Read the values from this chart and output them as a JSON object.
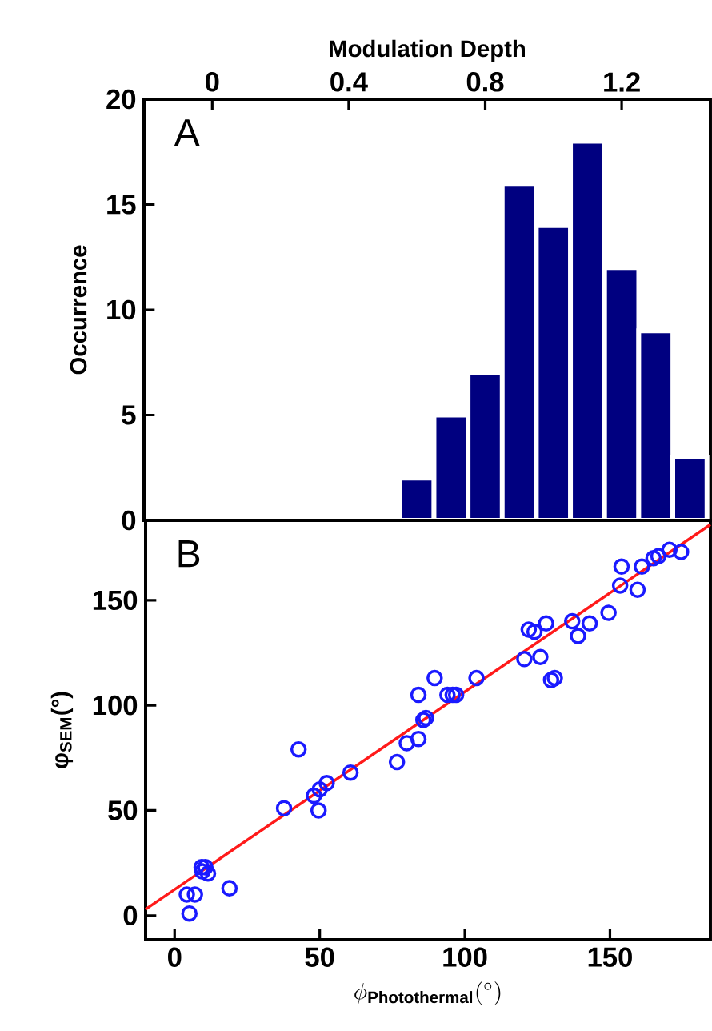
{
  "chart_data": [
    {
      "type": "histogram",
      "xlabel": "Modulation Depth",
      "ylabel": "Occurrence",
      "annotations": [
        "A"
      ],
      "bins": [
        0.55,
        0.65,
        0.75,
        0.85,
        0.95,
        1.05,
        1.15,
        1.25,
        1.35,
        1.45
      ],
      "values": [
        2,
        5,
        7,
        16,
        14,
        18,
        12,
        9,
        3
      ],
      "color": "#000080",
      "xlim": [
        -0.2,
        1.46
      ],
      "xticks": [
        0,
        0.4,
        0.8,
        1.2
      ],
      "ylim": [
        0,
        20
      ],
      "yticks": [
        0,
        5,
        10,
        15,
        20
      ]
    },
    {
      "type": "scatter",
      "xlabel": "\\phi_{\\mathbf{Photothermal}}(^{\\circ})",
      "ylabel": "φ$_{SEM}$(°)",
      "annotations": [
        "B"
      ],
      "series": [
        {
          "type": "scatter",
          "color": "#1a1aff",
          "marker": "circle",
          "x": [
            5.1,
            4.2,
            7,
            9.3,
            10.6,
            11.5,
            9.6,
            18.9,
            37.7,
            42.7,
            48,
            50,
            49.6,
            52.4,
            60.6,
            76.6,
            80,
            84,
            84,
            85.7,
            86.6,
            89.6,
            94,
            95.8,
            97,
            104,
            120.5,
            122,
            124,
            126,
            128,
            129.7,
            131,
            137,
            139,
            143,
            149.5,
            153.5,
            154,
            159.5,
            161,
            165,
            166.7,
            170.5,
            174.5
          ],
          "values": [
            1,
            10,
            10,
            23,
            23,
            20,
            21,
            13,
            51,
            79,
            57,
            60,
            50,
            63,
            68,
            73,
            82,
            84,
            105,
            93,
            94,
            113,
            105,
            105,
            105,
            113,
            122,
            136,
            135,
            123,
            139,
            112,
            113,
            140,
            133,
            139,
            144,
            157,
            166,
            155,
            166,
            170,
            171,
            174,
            173
          ]
        },
        {
          "type": "line",
          "color": "#ff1a1a",
          "x": [
            -10,
            184.6
          ],
          "values": [
            3,
            186
          ]
        }
      ],
      "xlim": [
        -10,
        184.6
      ],
      "xticks": [
        0,
        50,
        100,
        150
      ],
      "ylim": [
        -11.5,
        188
      ],
      "yticks": [
        0,
        50,
        100,
        150
      ]
    }
  ]
}
